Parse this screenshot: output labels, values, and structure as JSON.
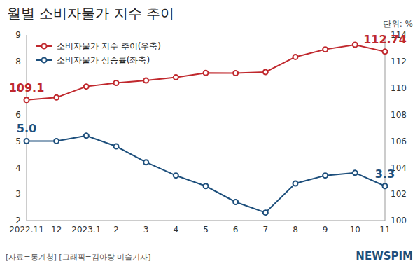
{
  "chart_data": {
    "type": "line",
    "title": "월별 소비자물가 지수 추이",
    "subtitle": "단위: %",
    "source": "[자료=통계청] [그래픽=김아랑 미술기자]",
    "logo": "NEWSPIM",
    "categories": [
      "2022.11",
      "12",
      "2023.1",
      "2",
      "3",
      "4",
      "5",
      "6",
      "7",
      "8",
      "9",
      "10",
      "11"
    ],
    "series": [
      {
        "name": "소비자물가 지수 추이(우축)",
        "color": "#c0282d",
        "axis": "y2",
        "marker": "circle",
        "values": [
          109.1,
          109.28,
          110.11,
          110.38,
          110.56,
          110.8,
          111.13,
          111.12,
          111.2,
          112.34,
          112.91,
          113.26,
          112.74
        ],
        "value_labels": [
          "109.1",
          null,
          null,
          null,
          null,
          null,
          null,
          null,
          null,
          null,
          null,
          null,
          "112.74"
        ]
      },
      {
        "name": "소비자물가 상승률(좌축)",
        "color": "#1d4f7c",
        "marker": "circle",
        "values": [
          5.0,
          5.0,
          5.2,
          4.8,
          4.2,
          3.7,
          3.3,
          2.7,
          2.3,
          3.4,
          3.7,
          3.8,
          3.3
        ],
        "value_labels": [
          "5.0",
          null,
          null,
          null,
          null,
          null,
          null,
          null,
          null,
          null,
          null,
          null,
          "3.3"
        ]
      }
    ],
    "ylim": [
      2,
      9
    ],
    "yticks": [
      2,
      3,
      4,
      5,
      6,
      7,
      8,
      9
    ],
    "y2lim": [
      100,
      114
    ],
    "y2ticks": [
      100,
      102,
      104,
      106,
      108,
      110,
      112,
      114
    ],
    "grid": false,
    "data_labels": true
  }
}
